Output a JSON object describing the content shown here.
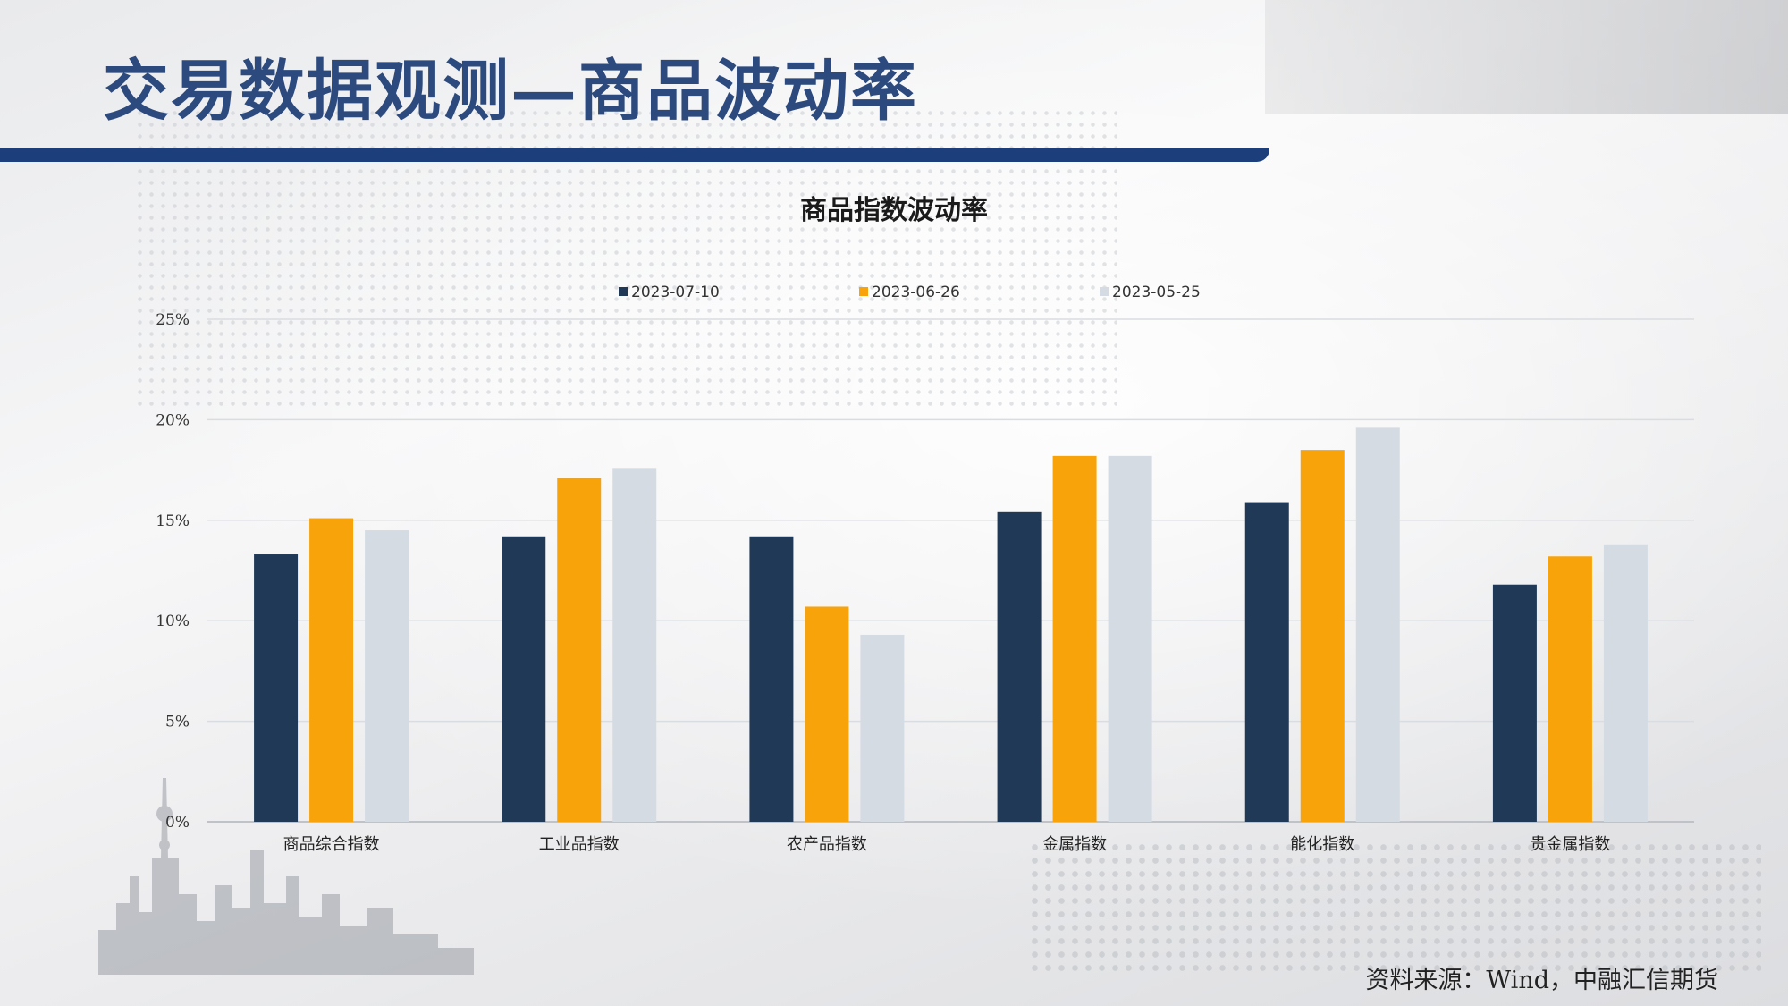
{
  "slide": {
    "title": "交易数据观测—商品波动率",
    "source": "资料来源：Wind，中融汇信期货"
  },
  "colors": {
    "title_text": "#2c4a7d",
    "title_bar": "#1c3f7c"
  },
  "chart_data": {
    "type": "bar",
    "title": "商品指数波动率",
    "categories": [
      "商品综合指数",
      "工业品指数",
      "农产品指数",
      "金属指数",
      "能化指数",
      "贵金属指数"
    ],
    "series": [
      {
        "name": "2023-07-10",
        "color": "#203956",
        "values": [
          0.133,
          0.142,
          0.142,
          0.154,
          0.159,
          0.118
        ]
      },
      {
        "name": "2023-06-26",
        "color": "#f8a30a",
        "values": [
          0.151,
          0.171,
          0.107,
          0.182,
          0.185,
          0.132
        ]
      },
      {
        "name": "2023-05-25",
        "color": "#d4dbe3",
        "values": [
          0.145,
          0.176,
          0.093,
          0.182,
          0.196,
          0.138
        ]
      }
    ],
    "y_ticks": [
      "0%",
      "5%",
      "10%",
      "15%",
      "20%",
      "25%"
    ],
    "ylim": [
      0,
      0.25
    ],
    "legend_position": "top-center",
    "grid": true
  }
}
